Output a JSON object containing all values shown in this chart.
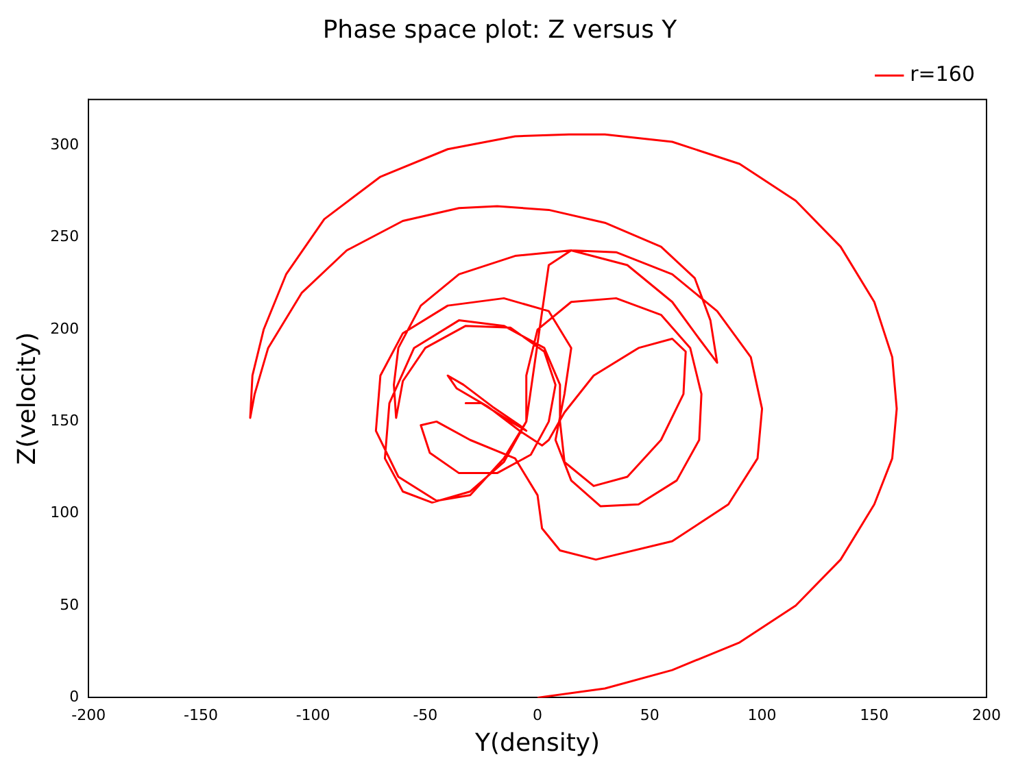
{
  "chart_data": {
    "type": "line",
    "title": "Phase space plot: Z versus Y",
    "xlabel": "Y(density)",
    "ylabel": "Z(velocity)",
    "xlim": [
      -200,
      200
    ],
    "xticks": [
      -200,
      -150,
      -100,
      -50,
      0,
      50,
      100,
      150,
      200
    ],
    "ylim": [
      0,
      325
    ],
    "yticks": [
      0,
      50,
      100,
      150,
      200,
      250,
      300
    ],
    "grid": false,
    "legend": "top right",
    "marker": "none",
    "line_style": "solid",
    "series": [
      {
        "name": "r=160",
        "color": "#ff0000",
        "x": [
          0,
          30,
          60,
          90,
          115,
          135,
          150,
          158,
          160,
          158,
          150,
          135,
          115,
          90,
          60,
          30,
          14,
          -10,
          -40,
          -70,
          -95,
          -112,
          -122,
          -127,
          -128,
          -126,
          -120,
          -105,
          -85,
          -60,
          -35,
          -18,
          5,
          30,
          55,
          70,
          77,
          80,
          72,
          60,
          40,
          15,
          -10,
          -35,
          -52,
          -62,
          -64,
          -63,
          -60,
          -50,
          -32,
          -12,
          3,
          8,
          5,
          -3,
          -18,
          -35,
          -48,
          -52,
          -45,
          -30,
          -10,
          0,
          2,
          10,
          26,
          60,
          85,
          98,
          100,
          95,
          80,
          60,
          35,
          15,
          5,
          -5,
          -15,
          -30,
          -45,
          -62,
          -72,
          -70,
          -60,
          -40,
          -15,
          5,
          15,
          12,
          8,
          15,
          28,
          45,
          62,
          72,
          73,
          68,
          55,
          35,
          15,
          0,
          -5,
          -5,
          -15,
          -30,
          -47,
          -60,
          -68,
          -66,
          -55,
          -35,
          -15,
          3,
          10,
          10,
          12,
          25,
          40,
          55,
          65,
          66,
          60,
          45,
          25,
          12,
          5,
          2,
          -8,
          -22,
          -36,
          -40,
          -33,
          -20,
          -8,
          -5,
          -12,
          -25,
          -32,
          -28
        ],
        "values": [
          0,
          5,
          15,
          30,
          50,
          75,
          105,
          130,
          157,
          185,
          215,
          245,
          270,
          290,
          302,
          306,
          306,
          305,
          298,
          283,
          260,
          230,
          200,
          175,
          152,
          165,
          190,
          220,
          243,
          259,
          266,
          267,
          265,
          258,
          245,
          228,
          205,
          182,
          195,
          215,
          235,
          243,
          240,
          230,
          213,
          190,
          170,
          152,
          172,
          190,
          202,
          201,
          188,
          170,
          150,
          132,
          122,
          122,
          133,
          148,
          150,
          140,
          130,
          110,
          92,
          80,
          75,
          85,
          105,
          130,
          157,
          185,
          210,
          230,
          242,
          243,
          235,
          150,
          130,
          110,
          107,
          120,
          145,
          175,
          198,
          213,
          217,
          210,
          190,
          165,
          140,
          118,
          104,
          105,
          118,
          140,
          165,
          190,
          208,
          217,
          215,
          200,
          175,
          150,
          128,
          112,
          106,
          112,
          130,
          160,
          190,
          205,
          202,
          190,
          170,
          150,
          128,
          115,
          120,
          140,
          165,
          188,
          195,
          190,
          175,
          155,
          140,
          137,
          145,
          158,
          168,
          175,
          170,
          158,
          148,
          145,
          150,
          160,
          160,
          160
        ]
      }
    ]
  }
}
